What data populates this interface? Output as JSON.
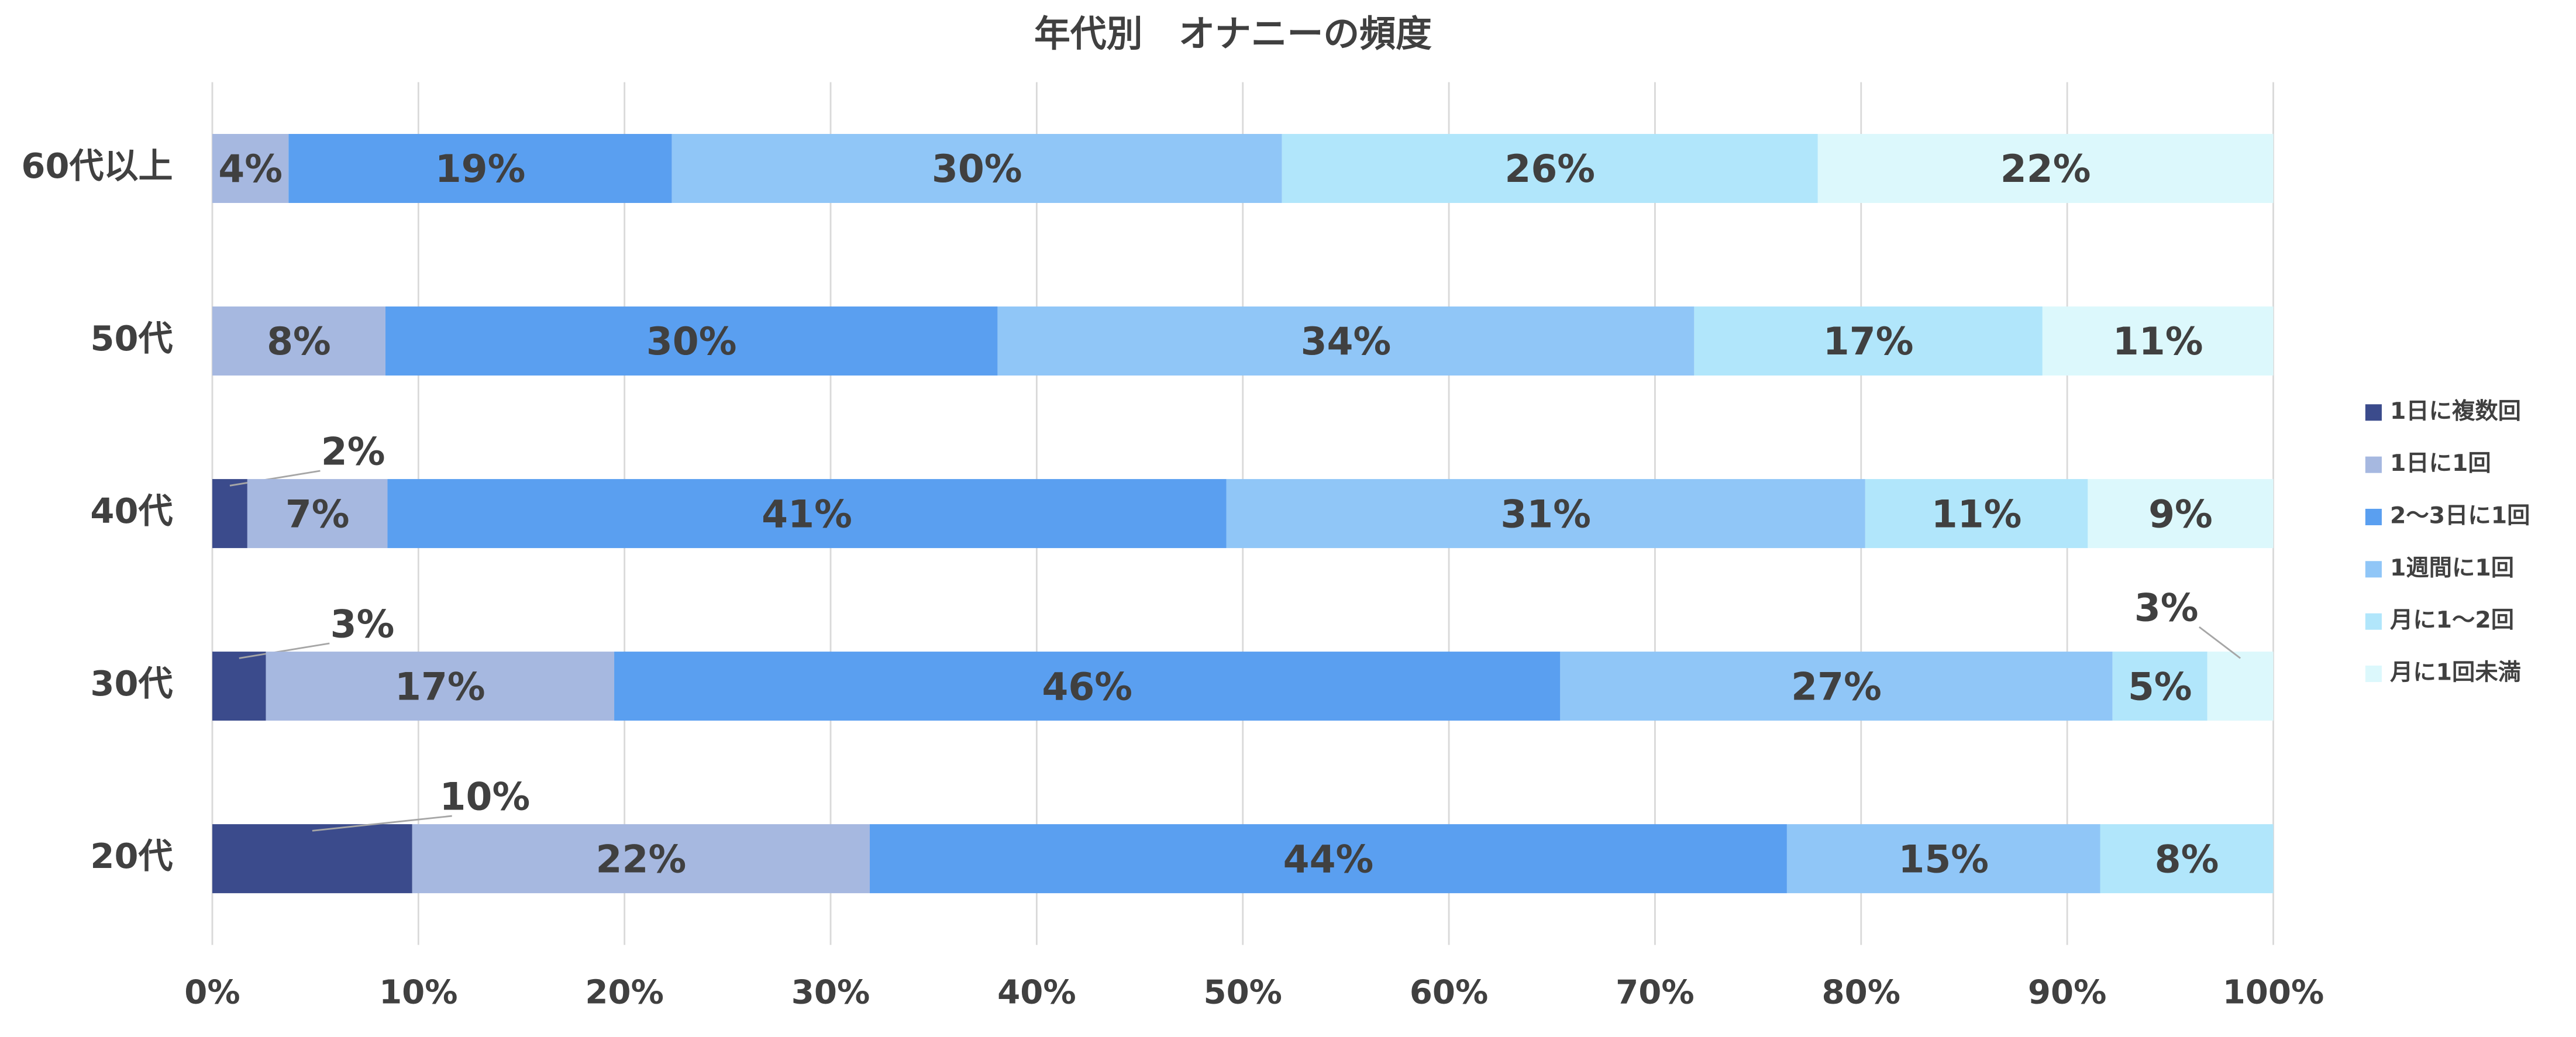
{
  "chart_data": {
    "type": "stacked_bar_horizontal",
    "title": "年代別　オナニーの頻度",
    "categories": [
      "60代以上",
      "50代",
      "40代",
      "30代",
      "20代"
    ],
    "series": [
      {
        "name": "1日に複数回",
        "color": "#3b4b8c",
        "values": [
          null,
          null,
          1.7,
          2.6,
          9.7
        ],
        "value_labels": [
          null,
          null,
          "2%",
          "3%",
          "10%"
        ]
      },
      {
        "name": "1日に1回",
        "color": "#a6b8e0",
        "values": [
          3.7,
          8.4,
          6.8,
          16.9,
          22.2
        ],
        "value_labels": [
          "4%",
          "8%",
          "7%",
          "17%",
          "22%"
        ]
      },
      {
        "name": "2～3日に1回",
        "color": "#5a9ff0",
        "values": [
          18.6,
          29.7,
          40.7,
          45.9,
          44.5
        ],
        "value_labels": [
          "19%",
          "30%",
          "41%",
          "46%",
          "44%"
        ]
      },
      {
        "name": "1週間に1回",
        "color": "#90c6f7",
        "values": [
          29.6,
          33.8,
          31.0,
          26.8,
          15.2
        ],
        "value_labels": [
          "30%",
          "34%",
          "31%",
          "27%",
          "15%"
        ]
      },
      {
        "name": "月に1～2回",
        "color": "#b1e6fb",
        "values": [
          26.0,
          16.9,
          10.8,
          4.6,
          8.4
        ],
        "value_labels": [
          "26%",
          "17%",
          "11%",
          "5%",
          "8%"
        ]
      },
      {
        "name": "月に1回未満",
        "color": "#dcf8fc",
        "values": [
          22.1,
          11.2,
          9.0,
          3.2,
          null
        ],
        "value_labels": [
          "22%",
          "11%",
          "9%",
          "3%",
          null
        ]
      }
    ],
    "xlim": [
      0,
      100
    ],
    "xticks": [
      {
        "value": 0,
        "label": "0%"
      },
      {
        "value": 10,
        "label": "10%"
      },
      {
        "value": 20,
        "label": "20%"
      },
      {
        "value": 30,
        "label": "30%"
      },
      {
        "value": 40,
        "label": "40%"
      },
      {
        "value": 50,
        "label": "50%"
      },
      {
        "value": 60,
        "label": "60%"
      },
      {
        "value": 70,
        "label": "70%"
      },
      {
        "value": 80,
        "label": "80%"
      },
      {
        "value": 90,
        "label": "90%"
      },
      {
        "value": 100,
        "label": "100%"
      }
    ],
    "grid": true,
    "legend": "right"
  }
}
